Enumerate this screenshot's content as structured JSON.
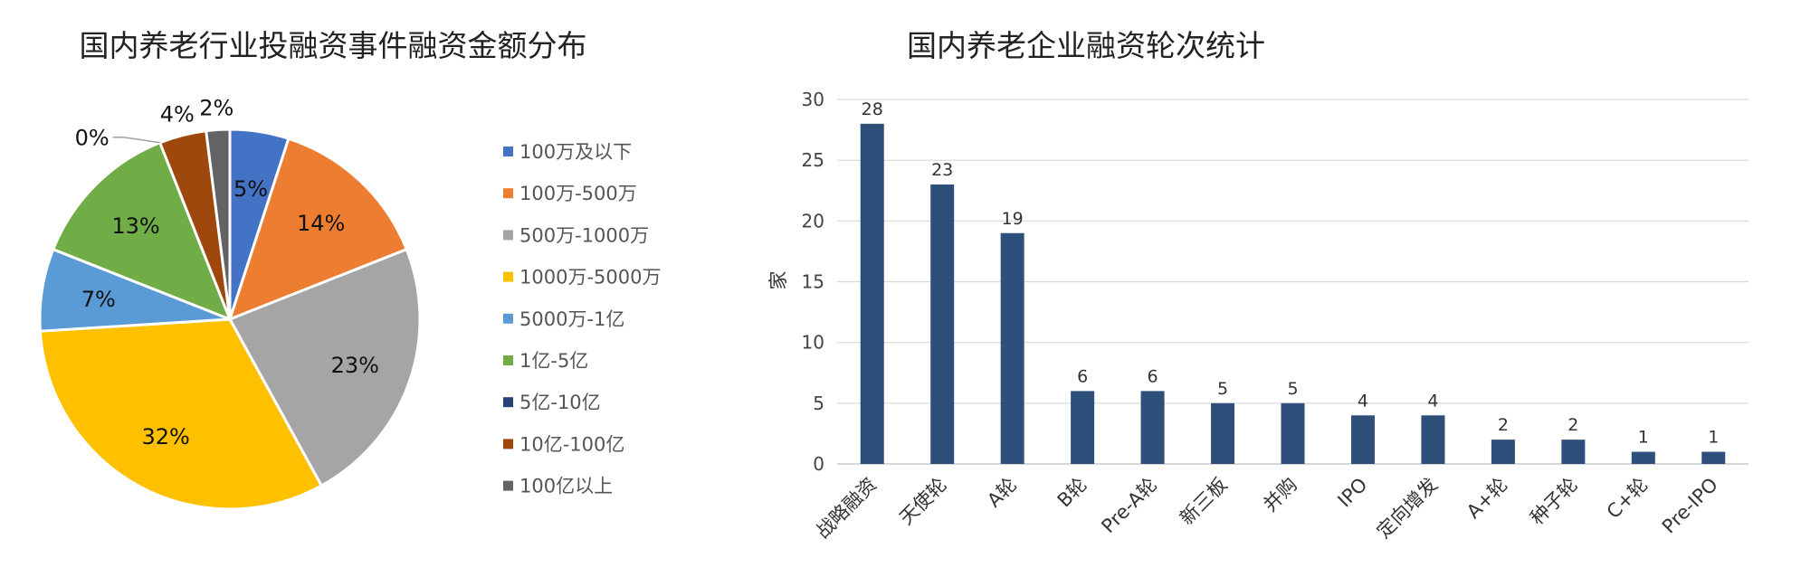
{
  "charts": {
    "pie": {
      "title": "国内养老行业投融资事件融资金额分布"
    },
    "bar": {
      "title": "国内养老企业融资轮次统计",
      "ylabel": "家"
    }
  },
  "chart_data": [
    {
      "type": "pie",
      "title": "国内养老行业投融资事件融资金额分布",
      "legend_position": "right",
      "slices": [
        {
          "label": "100万及以下",
          "value": 5,
          "display": "5%",
          "color": "#4472c4"
        },
        {
          "label": "100万-500万",
          "value": 14,
          "display": "14%",
          "color": "#ed7d31"
        },
        {
          "label": "500万-1000万",
          "value": 23,
          "display": "23%",
          "color": "#a5a5a5"
        },
        {
          "label": "1000万-5000万",
          "value": 32,
          "display": "32%",
          "color": "#ffc000"
        },
        {
          "label": "5000万-1亿",
          "value": 7,
          "display": "7%",
          "color": "#5b9bd5"
        },
        {
          "label": "1亿-5亿",
          "value": 13,
          "display": "13%",
          "color": "#70ad47"
        },
        {
          "label": "5亿-10亿",
          "value": 0,
          "display": "0%",
          "color": "#264478"
        },
        {
          "label": "10亿-100亿",
          "value": 4,
          "display": "4%",
          "color": "#9e480e"
        },
        {
          "label": "100亿以上",
          "value": 2,
          "display": "2%",
          "color": "#636363"
        }
      ]
    },
    {
      "type": "bar",
      "title": "国内养老企业融资轮次统计",
      "ylabel": "家",
      "ylim": [
        0,
        30
      ],
      "yticks": [
        0,
        5,
        10,
        15,
        20,
        25,
        30
      ],
      "grid": true,
      "color": "#2e4f7a",
      "categories": [
        "战略融资",
        "天使轮",
        "A轮",
        "B轮",
        "Pre-A轮",
        "新三板",
        "并购",
        "IPO",
        "定向增发",
        "A+轮",
        "种子轮",
        "C+轮",
        "Pre-IPO"
      ],
      "values": [
        28,
        23,
        19,
        6,
        6,
        5,
        5,
        4,
        4,
        2,
        2,
        1,
        1
      ]
    }
  ]
}
